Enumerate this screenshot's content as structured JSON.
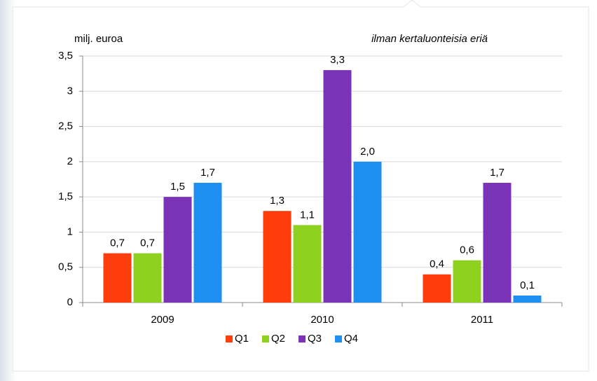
{
  "chart_data": {
    "type": "bar",
    "y_axis_label": "milj. euroa",
    "annotation": "ilman kertaluonteisia eriä",
    "categories": [
      "2009",
      "2010",
      "2011"
    ],
    "series": [
      {
        "name": "Q1",
        "color": "#fe3d0c",
        "values": [
          0.7,
          1.3,
          0.4
        ],
        "value_labels": [
          "0,7",
          "1,3",
          "0,4"
        ]
      },
      {
        "name": "Q2",
        "color": "#8fd11f",
        "values": [
          0.7,
          1.1,
          0.6
        ],
        "value_labels": [
          "0,7",
          "1,1",
          "0,6"
        ]
      },
      {
        "name": "Q3",
        "color": "#7a33b6",
        "values": [
          1.5,
          3.3,
          1.7
        ],
        "value_labels": [
          "1,5",
          "3,3",
          "1,7"
        ]
      },
      {
        "name": "Q4",
        "color": "#1c8ff0",
        "values": [
          1.7,
          2.0,
          0.1
        ],
        "value_labels": [
          "1,7",
          "2,0",
          "0,1"
        ]
      }
    ],
    "ylim": [
      0,
      3.5
    ],
    "yticks": [
      0,
      {
        "value": 0.5,
        "label": "0,5"
      },
      1,
      {
        "value": 1.5,
        "label": "1,5"
      },
      2,
      {
        "value": 2.5,
        "label": "2,5"
      },
      3,
      {
        "value": 3.5,
        "label": "3,5"
      }
    ],
    "grid": true,
    "legend": "bottom"
  }
}
